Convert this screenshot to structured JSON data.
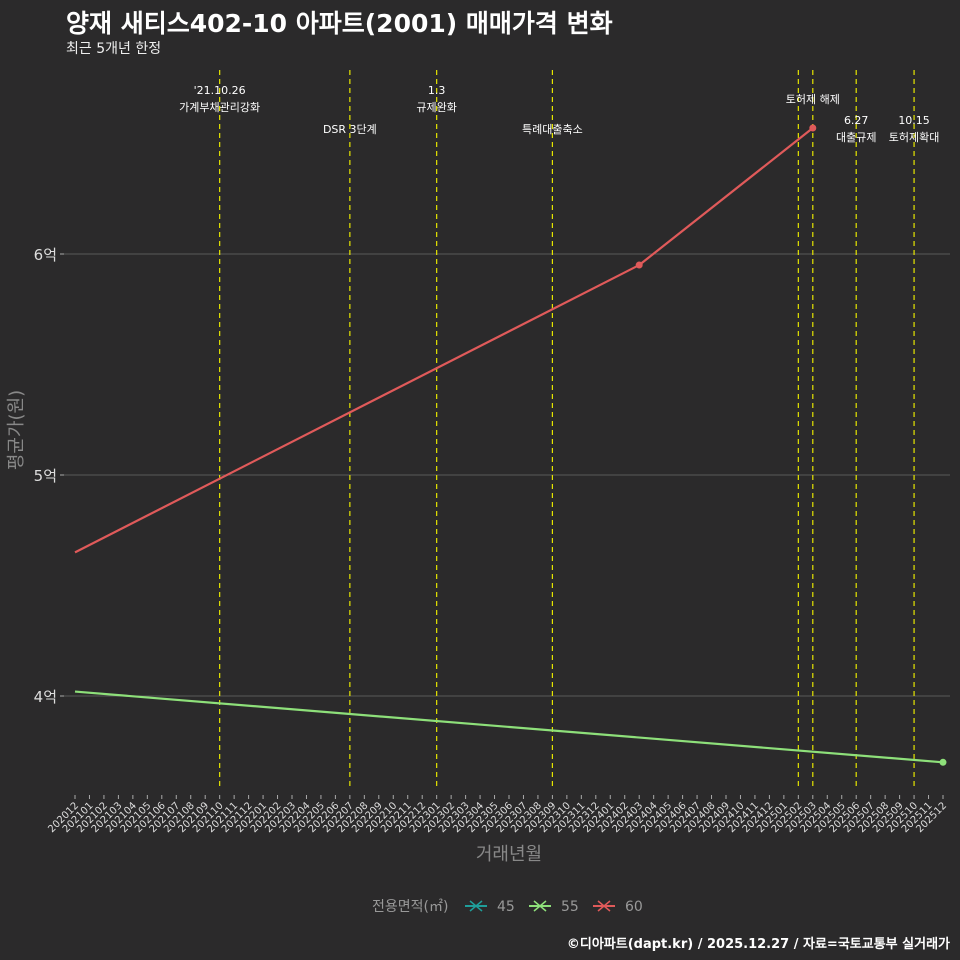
{
  "title": "양재 새티스402-10 아파트(2001) 매매가격 변화",
  "subtitle": "최근 5개년 한정",
  "caption": "©디아파트(dapt.kr) / 2025.12.27 / 자료=국토교통부 실거래가",
  "chart_data": {
    "type": "line",
    "title": "양재 새티스402-10 아파트(2001) 매매가격 변화",
    "xlabel": "거래년월",
    "ylabel": "평균가(원)",
    "x": [
      "202012",
      "202101",
      "202102",
      "202103",
      "202104",
      "202105",
      "202106",
      "202107",
      "202108",
      "202109",
      "202110",
      "202111",
      "202112",
      "202201",
      "202202",
      "202203",
      "202204",
      "202205",
      "202206",
      "202207",
      "202208",
      "202209",
      "202210",
      "202211",
      "202212",
      "202301",
      "202302",
      "202303",
      "202304",
      "202305",
      "202306",
      "202307",
      "202308",
      "202309",
      "202310",
      "202311",
      "202312",
      "202401",
      "202402",
      "202403",
      "202404",
      "202405",
      "202406",
      "202407",
      "202408",
      "202409",
      "202410",
      "202411",
      "202412",
      "202501",
      "202502",
      "202503",
      "202504",
      "202505",
      "202506",
      "202507",
      "202508",
      "202509",
      "202510",
      "202511",
      "202512"
    ],
    "ylim": [
      3.57,
      6.88
    ],
    "yticks": [
      {
        "v": 4,
        "label": "4억"
      },
      {
        "v": 5,
        "label": "5억"
      },
      {
        "v": 6,
        "label": "6억"
      }
    ],
    "legend": {
      "title": "전용면적(㎡)",
      "position": "bottom"
    },
    "series": [
      {
        "name": "45",
        "color": "#1f9e9a",
        "points": []
      },
      {
        "name": "55",
        "color": "#8ee07a",
        "points": [
          {
            "x": "202012",
            "y": 4.02
          },
          {
            "x": "202512",
            "y": 3.7
          }
        ],
        "markers": [
          "202512"
        ]
      },
      {
        "name": "60",
        "color": "#e05a5a",
        "points": [
          {
            "x": "202012",
            "y": 4.65
          },
          {
            "x": "202403",
            "y": 5.95
          },
          {
            "x": "202503",
            "y": 6.57
          }
        ],
        "markers": [
          "202403",
          "202503"
        ]
      }
    ],
    "events": [
      {
        "x": "202110",
        "lines": [
          "'21.10.26",
          "가계부채관리강화"
        ],
        "row": 0
      },
      {
        "x": "202207",
        "lines": [
          "DSR 3단계"
        ],
        "row": 2
      },
      {
        "x": "202301",
        "lines": [
          "1.3",
          "규제완화"
        ],
        "row": 0
      },
      {
        "x": "202309",
        "lines": [
          "특례대출축소"
        ],
        "row": 2
      },
      {
        "x": "202502",
        "lines": [],
        "row": 0
      },
      {
        "x": "202503",
        "lines": [
          "토허제 해제"
        ],
        "row": 1
      },
      {
        "x": "202506",
        "lines": [
          "6.27",
          "대출규제"
        ],
        "row": 3
      },
      {
        "x": "202510",
        "lines": [
          "10.15",
          "토허제확대"
        ],
        "row": 3
      }
    ]
  }
}
